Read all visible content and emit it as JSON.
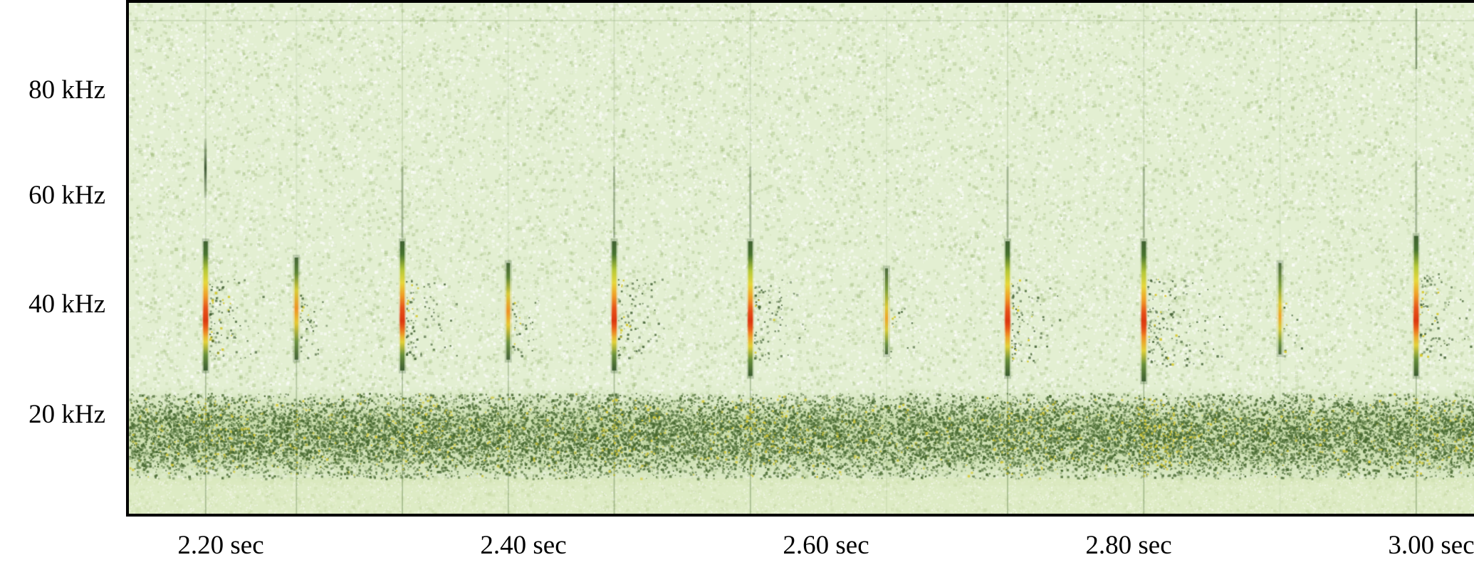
{
  "figure": {
    "kind": "spectrogram",
    "description": "Green-scale audio spectrogram of a repeated ultrasonic pulse train (echolocation-type calls) with hot red/orange cores near 40 kHz and a speckled low-frequency noise band"
  },
  "chart_data": {
    "type": "heatmap",
    "subtype": "spectrogram",
    "title": "",
    "x_axis": {
      "unit": "sec",
      "ticks": [
        2.2,
        2.4,
        2.6,
        2.8,
        3.0
      ],
      "tick_labels": [
        "2.20 sec",
        "2.40 sec",
        "2.60 sec",
        "2.80 sec",
        "3.00 sec"
      ],
      "visible_range_sec": [
        2.14,
        3.03
      ],
      "grid": false
    },
    "y_axis": {
      "unit": "kHz",
      "ticks": [
        20,
        40,
        60,
        80
      ],
      "tick_labels": [
        "20 kHz",
        "40 kHz",
        "60 kHz",
        "80 kHz"
      ],
      "visible_range_khz": [
        2,
        97
      ],
      "grid": false
    },
    "series": [
      {
        "name": "echolocation-pulses",
        "points": [
          {
            "time_sec": 2.19,
            "peak_freq_khz": 40,
            "freq_span_khz": [
              30,
              52
            ],
            "intensity": "strong",
            "harmonic_khz": [
              60,
              71
            ]
          },
          {
            "time_sec": 2.25,
            "peak_freq_khz": 40,
            "freq_span_khz": [
              32,
              49
            ],
            "intensity": "medium"
          },
          {
            "time_sec": 2.32,
            "peak_freq_khz": 40,
            "freq_span_khz": [
              30,
              52
            ],
            "intensity": "strong"
          },
          {
            "time_sec": 2.39,
            "peak_freq_khz": 40,
            "freq_span_khz": [
              32,
              48
            ],
            "intensity": "medium"
          },
          {
            "time_sec": 2.46,
            "peak_freq_khz": 40,
            "freq_span_khz": [
              30,
              52
            ],
            "intensity": "strong"
          },
          {
            "time_sec": 2.55,
            "peak_freq_khz": 39,
            "freq_span_khz": [
              29,
              52
            ],
            "intensity": "strong"
          },
          {
            "time_sec": 2.64,
            "peak_freq_khz": 40,
            "freq_span_khz": [
              33,
              47
            ],
            "intensity": "weak"
          },
          {
            "time_sec": 2.72,
            "peak_freq_khz": 40,
            "freq_span_khz": [
              29,
              52
            ],
            "intensity": "strong"
          },
          {
            "time_sec": 2.81,
            "peak_freq_khz": 39,
            "freq_span_khz": [
              28,
              52
            ],
            "intensity": "strong",
            "echo_large": true
          },
          {
            "time_sec": 2.9,
            "peak_freq_khz": 40,
            "freq_span_khz": [
              33,
              48
            ],
            "intensity": "weak"
          },
          {
            "time_sec": 2.99,
            "peak_freq_khz": 40,
            "freq_span_khz": [
              29,
              53
            ],
            "intensity": "strong",
            "column_to_top": true
          }
        ]
      }
    ],
    "noise_band": {
      "freq_range_khz": [
        8,
        24
      ],
      "description": "dense horizontal noise band of dark-green and yellow speckles across the full duration"
    },
    "palette": {
      "background": "#e3efd2",
      "speckle_light": "#ffffff",
      "speckle_green": "#8fae64",
      "noise_dark": "#46682f",
      "noise_yellow": "#d7ca34",
      "pulse_yellow": "#e5d63d",
      "pulse_orange": "#ee9226",
      "pulse_red": "#dd4014",
      "pulse_green_dark": "#33582a",
      "border": "#000000"
    }
  }
}
